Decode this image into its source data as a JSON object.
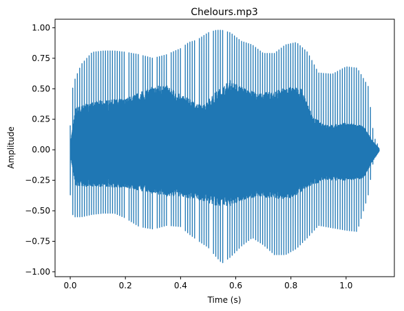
{
  "chart_data": {
    "type": "line",
    "title": "Chelours.mp3",
    "xlabel": "Time (s)",
    "ylabel": "Amplitude",
    "xlim": [
      -0.055,
      1.175
    ],
    "ylim": [
      -1.04,
      1.07
    ],
    "xticks": [
      0.0,
      0.2,
      0.4,
      0.6,
      0.8,
      1.0
    ],
    "xtick_labels": [
      "0.0",
      "0.2",
      "0.4",
      "0.6",
      "0.8",
      "1.0"
    ],
    "yticks": [
      -1.0,
      -0.75,
      -0.5,
      -0.25,
      0.0,
      0.25,
      0.5,
      0.75,
      1.0
    ],
    "ytick_labels": [
      "−1.00",
      "−0.75",
      "−0.50",
      "−0.25",
      "0.00",
      "0.25",
      "0.50",
      "0.75",
      "1.00"
    ],
    "grid": false,
    "line_color": "#1f77b4",
    "series": [
      {
        "name": "",
        "duration_s": 1.12,
        "peak_envelope": {
          "t": [
            0.0,
            0.01,
            0.04,
            0.08,
            0.12,
            0.16,
            0.2,
            0.25,
            0.3,
            0.35,
            0.4,
            0.43,
            0.46,
            0.5,
            0.53,
            0.55,
            0.58,
            0.62,
            0.66,
            0.7,
            0.74,
            0.78,
            0.82,
            0.86,
            0.9,
            0.95,
            1.0,
            1.04,
            1.08,
            1.1,
            1.12
          ],
          "upper": [
            0.2,
            0.54,
            0.7,
            0.8,
            0.81,
            0.81,
            0.8,
            0.78,
            0.75,
            0.78,
            0.83,
            0.88,
            0.9,
            0.96,
            0.98,
            0.98,
            0.96,
            0.89,
            0.86,
            0.79,
            0.79,
            0.86,
            0.88,
            0.8,
            0.63,
            0.62,
            0.68,
            0.67,
            0.52,
            0.11,
            0.02
          ],
          "lower": [
            -0.37,
            -0.55,
            -0.55,
            -0.53,
            -0.52,
            -0.52,
            -0.56,
            -0.63,
            -0.65,
            -0.62,
            -0.63,
            -0.69,
            -0.74,
            -0.8,
            -0.88,
            -0.93,
            -0.88,
            -0.79,
            -0.72,
            -0.78,
            -0.86,
            -0.86,
            -0.81,
            -0.72,
            -0.62,
            -0.64,
            -0.66,
            -0.67,
            -0.37,
            -0.07,
            -0.01
          ]
        },
        "body_envelope": {
          "t": [
            0.0,
            0.02,
            0.1,
            0.2,
            0.3,
            0.34,
            0.4,
            0.48,
            0.53,
            0.58,
            0.62,
            0.68,
            0.74,
            0.8,
            0.84,
            0.88,
            0.94,
            1.0,
            1.06,
            1.1,
            1.12
          ],
          "upper": [
            0.05,
            0.35,
            0.4,
            0.42,
            0.52,
            0.54,
            0.45,
            0.36,
            0.48,
            0.57,
            0.52,
            0.46,
            0.48,
            0.52,
            0.5,
            0.26,
            0.2,
            0.22,
            0.2,
            0.06,
            0.01
          ],
          "lower": [
            -0.05,
            -0.3,
            -0.3,
            -0.31,
            -0.36,
            -0.38,
            -0.38,
            -0.42,
            -0.46,
            -0.46,
            -0.42,
            -0.38,
            -0.4,
            -0.4,
            -0.34,
            -0.28,
            -0.25,
            -0.25,
            -0.24,
            -0.08,
            -0.01
          ]
        },
        "spike_period_s": 0.0085
      }
    ]
  }
}
